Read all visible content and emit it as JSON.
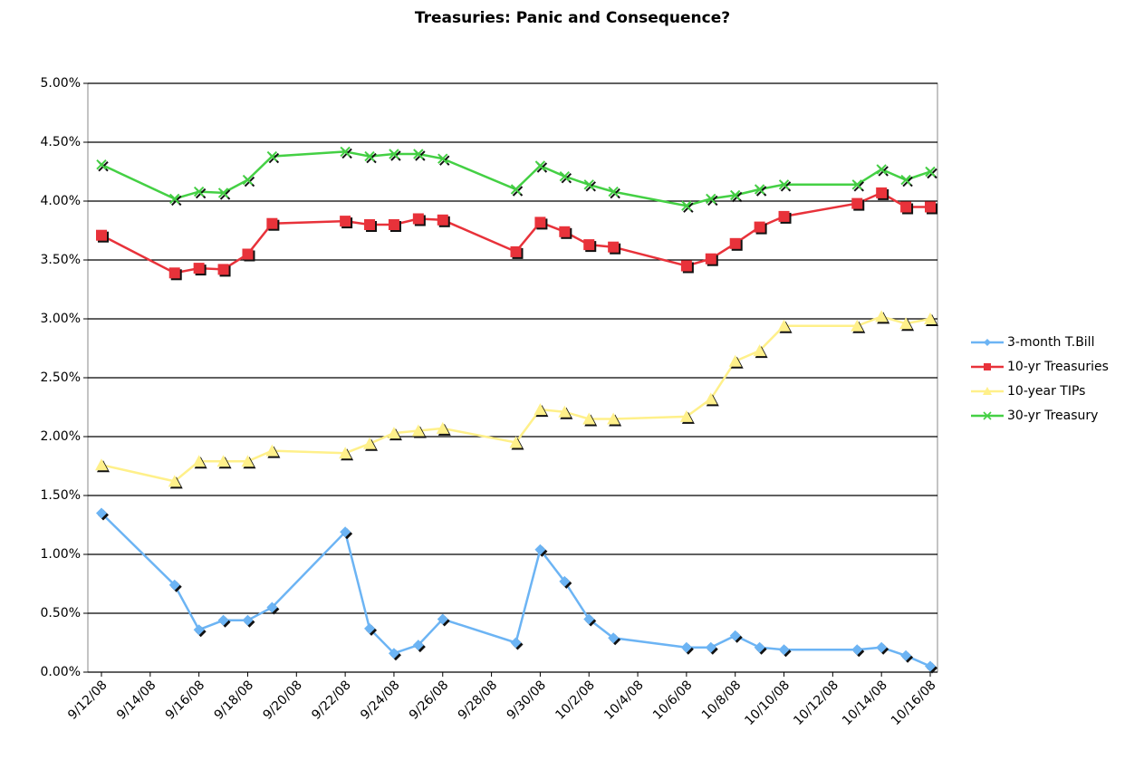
{
  "chart_data": {
    "type": "line",
    "title": "Treasuries: Panic and Consequence?",
    "x": [
      "9/12/08",
      "9/15/08",
      "9/16/08",
      "9/17/08",
      "9/18/08",
      "9/19/08",
      "9/22/08",
      "9/23/08",
      "9/24/08",
      "9/25/08",
      "9/26/08",
      "9/29/08",
      "9/30/08",
      "10/1/08",
      "10/2/08",
      "10/3/08",
      "10/6/08",
      "10/7/08",
      "10/8/08",
      "10/9/08",
      "10/10/08",
      "10/13/08",
      "10/14/08",
      "10/15/08",
      "10/16/08"
    ],
    "xlim": [
      "9/12/08",
      "10/16/08"
    ],
    "xticks": [
      "9/12/08",
      "9/14/08",
      "9/16/08",
      "9/18/08",
      "9/20/08",
      "9/22/08",
      "9/24/08",
      "9/26/08",
      "9/28/08",
      "9/30/08",
      "10/2/08",
      "10/4/08",
      "10/6/08",
      "10/8/08",
      "10/10/08",
      "10/12/08",
      "10/14/08",
      "10/16/08"
    ],
    "ylim": [
      0,
      5
    ],
    "yticks": [
      {
        "value": 0,
        "label": "0.00%"
      },
      {
        "value": 0.5,
        "label": "0.50%"
      },
      {
        "value": 1,
        "label": "1.00%"
      },
      {
        "value": 1.5,
        "label": "1.50%"
      },
      {
        "value": 2,
        "label": "2.00%"
      },
      {
        "value": 2.5,
        "label": "2.50%"
      },
      {
        "value": 3,
        "label": "3.00%"
      },
      {
        "value": 3.5,
        "label": "3.50%"
      },
      {
        "value": 4,
        "label": "4.00%"
      },
      {
        "value": 4.5,
        "label": "4.50%"
      },
      {
        "value": 5,
        "label": "5.00%"
      }
    ],
    "grid": true,
    "legend": "right",
    "series": [
      {
        "name": "3-month T.Bill",
        "color": "#6cb4f4",
        "marker": "diamond",
        "values": [
          1.35,
          0.74,
          0.36,
          0.44,
          0.44,
          0.55,
          1.19,
          0.37,
          0.16,
          0.23,
          0.45,
          0.25,
          1.04,
          0.77,
          0.45,
          0.29,
          0.21,
          0.21,
          0.31,
          0.21,
          0.19,
          0.19,
          0.21,
          0.14,
          0.05
        ]
      },
      {
        "name": "10-yr Treasuries",
        "color": "#e8323a",
        "marker": "square",
        "values": [
          3.71,
          3.39,
          3.43,
          3.42,
          3.55,
          3.81,
          3.83,
          3.8,
          3.8,
          3.85,
          3.84,
          3.57,
          3.82,
          3.74,
          3.63,
          3.61,
          3.45,
          3.51,
          3.64,
          3.78,
          3.87,
          3.98,
          4.07,
          3.95,
          3.95
        ]
      },
      {
        "name": "10-year TIPs",
        "color": "#fff08a",
        "marker": "triangle",
        "values": [
          1.76,
          1.62,
          1.79,
          1.79,
          1.79,
          1.88,
          1.86,
          1.94,
          2.03,
          2.05,
          2.07,
          1.95,
          2.23,
          2.21,
          2.15,
          2.15,
          2.17,
          2.32,
          2.64,
          2.73,
          2.94,
          2.94,
          3.02,
          2.96,
          3.0
        ]
      },
      {
        "name": "30-yr Treasury",
        "color": "#44d044",
        "marker": "x",
        "values": [
          4.31,
          4.02,
          4.08,
          4.07,
          4.18,
          4.38,
          4.42,
          4.38,
          4.4,
          4.4,
          4.36,
          4.1,
          4.3,
          4.21,
          4.14,
          4.08,
          3.96,
          4.02,
          4.05,
          4.1,
          4.14,
          4.14,
          4.27,
          4.18,
          4.25
        ]
      }
    ]
  }
}
